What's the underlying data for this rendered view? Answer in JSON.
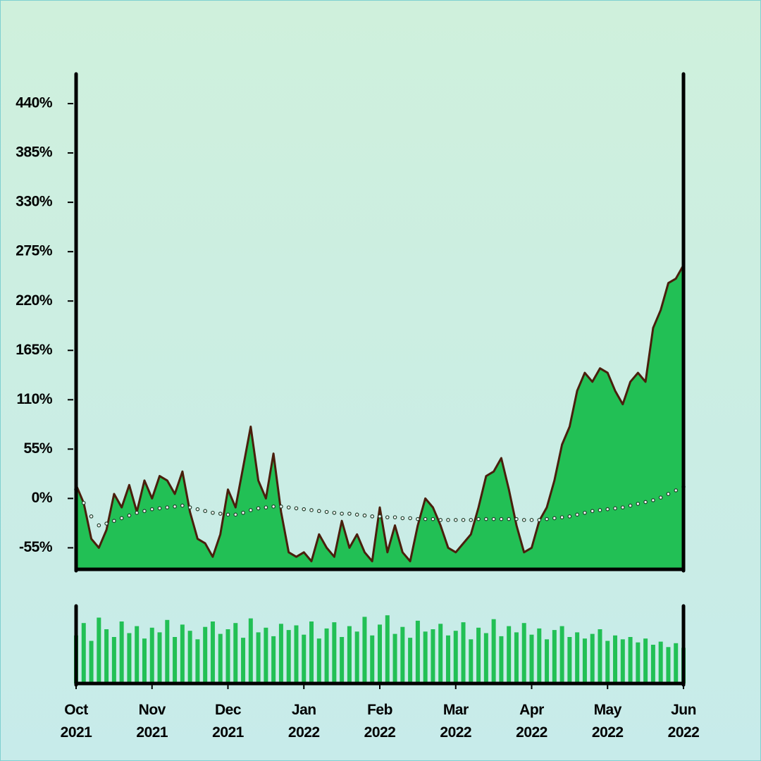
{
  "chart_data": {
    "type": "area",
    "categories": [
      "Oct 2021",
      null,
      null,
      null,
      null,
      null,
      null,
      null,
      null,
      null,
      "Nov 2021",
      null,
      null,
      null,
      null,
      null,
      null,
      null,
      null,
      null,
      "Dec 2021",
      null,
      null,
      null,
      null,
      null,
      null,
      null,
      null,
      null,
      "Jan 2022",
      null,
      null,
      null,
      null,
      null,
      null,
      null,
      null,
      null,
      "Feb 2022",
      null,
      null,
      null,
      null,
      null,
      null,
      null,
      null,
      null,
      "Mar 2022",
      null,
      null,
      null,
      null,
      null,
      null,
      null,
      null,
      null,
      "Apr 2022",
      null,
      null,
      null,
      null,
      null,
      null,
      null,
      null,
      null,
      "May 2022",
      null,
      null,
      null,
      null,
      null,
      null,
      null,
      null,
      null,
      "Jun 2022"
    ],
    "series": [
      {
        "type": "area",
        "color": "#22c055",
        "line_color": "#4a1e0c",
        "values": [
          15,
          -5,
          -45,
          -55,
          -35,
          5,
          -10,
          15,
          -15,
          20,
          0,
          25,
          20,
          5,
          30,
          -15,
          -45,
          -50,
          -65,
          -40,
          10,
          -10,
          35,
          80,
          20,
          0,
          50,
          -15,
          -60,
          -65,
          -60,
          -70,
          -40,
          -55,
          -65,
          -25,
          -55,
          -40,
          -60,
          -70,
          -10,
          -60,
          -30,
          -60,
          -70,
          -30,
          0,
          -10,
          -30,
          -55,
          -60,
          -50,
          -40,
          -10,
          25,
          30,
          45,
          10,
          -30,
          -60,
          -55,
          -25,
          -10,
          20,
          60,
          80,
          120,
          140,
          130,
          145,
          140,
          120,
          105,
          130,
          140,
          130,
          190,
          210,
          240,
          245,
          260
        ]
      },
      {
        "type": "dots",
        "color": "#1f3d2a",
        "values": [
          10,
          -5,
          -20,
          -30,
          -28,
          -25,
          -22,
          -19,
          -16,
          -14,
          -12,
          -11,
          -10,
          -9,
          -8,
          -10,
          -12,
          -14,
          -16,
          -17,
          -18,
          -18,
          -16,
          -13,
          -11,
          -10,
          -9,
          -9,
          -10,
          -11,
          -12,
          -13,
          -14,
          -15,
          -16,
          -17,
          -17,
          -18,
          -19,
          -20,
          -20,
          -21,
          -21,
          -22,
          -22,
          -23,
          -23,
          -23,
          -24,
          -24,
          -24,
          -24,
          -24,
          -23,
          -23,
          -23,
          -23,
          -23,
          -23,
          -24,
          -24,
          -24,
          -23,
          -22,
          -21,
          -20,
          -18,
          -16,
          -14,
          -13,
          -12,
          -11,
          -10,
          -8,
          -6,
          -4,
          -2,
          1,
          5,
          9,
          13
        ]
      },
      {
        "type": "bar",
        "axis": "y2",
        "color": "#22c055",
        "values": [
          62,
          78,
          55,
          85,
          70,
          60,
          80,
          65,
          74,
          58,
          72,
          66,
          82,
          60,
          76,
          68,
          57,
          73,
          80,
          64,
          70,
          78,
          59,
          84,
          66,
          72,
          61,
          77,
          69,
          75,
          63,
          80,
          58,
          71,
          79,
          60,
          74,
          67,
          86,
          62,
          76,
          88,
          64,
          73,
          59,
          81,
          67,
          70,
          77,
          62,
          68,
          79,
          57,
          72,
          65,
          83,
          61,
          74,
          66,
          78,
          63,
          71,
          57,
          69,
          74,
          60,
          66,
          58,
          64,
          70,
          55,
          62,
          57,
          60,
          53,
          58,
          50,
          54,
          47,
          52,
          46
        ]
      }
    ],
    "ylim": [
      -79,
      473
    ],
    "yticks": [
      {
        "value": -55,
        "label": "-55%"
      },
      {
        "value": 0,
        "label": "0%"
      },
      {
        "value": 55,
        "label": "55%"
      },
      {
        "value": 110,
        "label": "110%"
      },
      {
        "value": 165,
        "label": "165%"
      },
      {
        "value": 220,
        "label": "220%"
      },
      {
        "value": 275,
        "label": "275%"
      },
      {
        "value": 330,
        "label": "330%"
      },
      {
        "value": 385,
        "label": "385%"
      },
      {
        "value": 440,
        "label": "440%"
      }
    ],
    "y2lim": [
      0,
      100
    ]
  }
}
